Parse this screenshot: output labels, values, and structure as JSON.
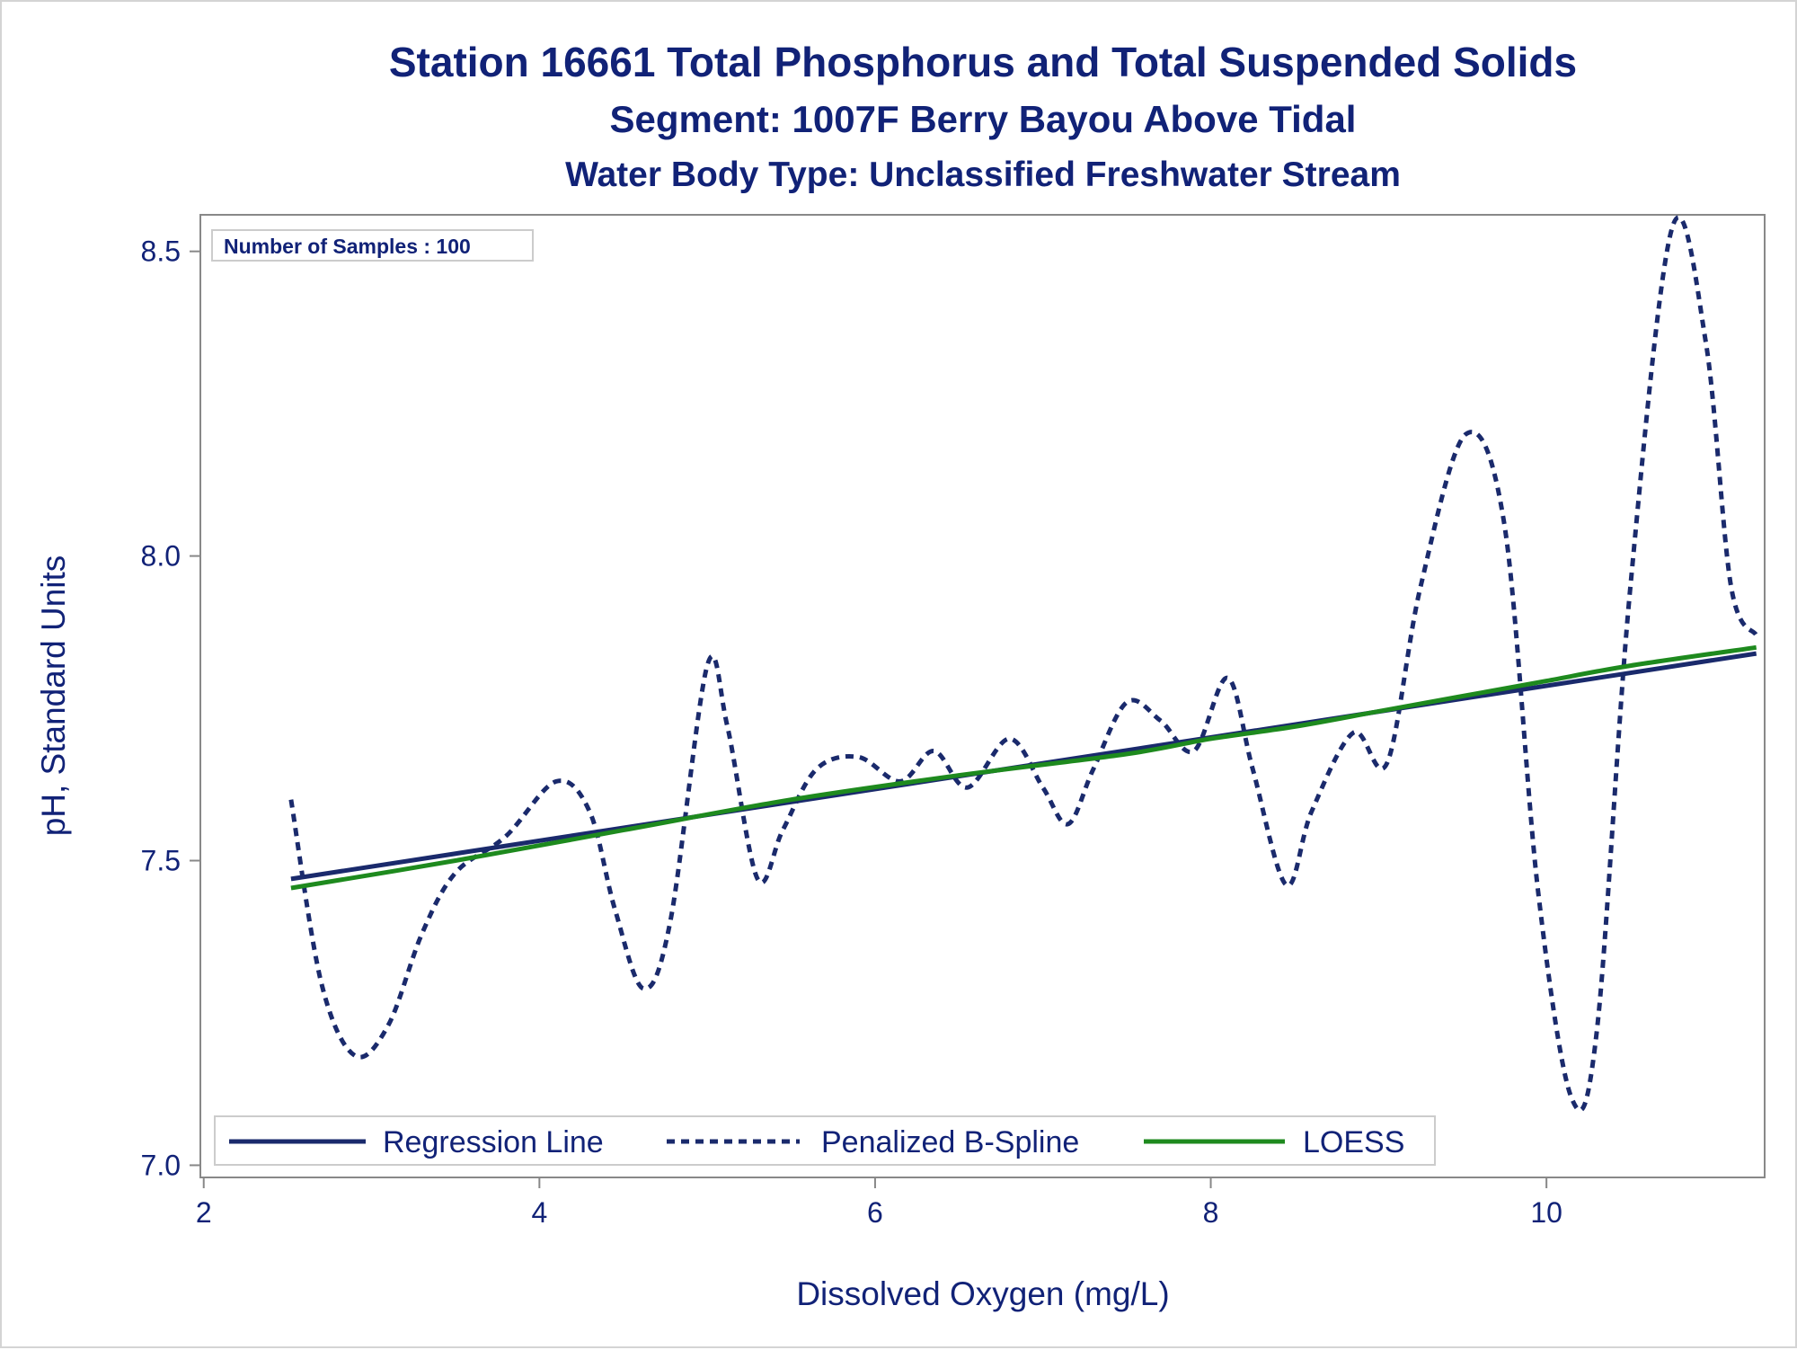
{
  "titles": {
    "line1": "Station 16661  Total Phosphorus and Total Suspended Solids",
    "line2": "Segment: 1007F  Berry Bayou Above Tidal",
    "line3": "Water Body Type: Unclassified Freshwater Stream"
  },
  "inset": {
    "label": "Number of Samples : 100"
  },
  "colors": {
    "text": "#112277",
    "regression": "#1a2a6c",
    "spline": "#1a2a6c",
    "loess": "#1e8a1e",
    "frame": "#888888"
  },
  "chart_data": {
    "type": "line",
    "xlabel": "Dissolved Oxygen (mg/L)",
    "ylabel": "pH, Standard Units",
    "xlim": [
      1.98,
      11.3
    ],
    "ylim": [
      6.98,
      8.56
    ],
    "x_ticks": [
      2,
      4,
      6,
      8,
      10
    ],
    "x_tick_labels": [
      "2",
      "4",
      "6",
      "8",
      "10"
    ],
    "y_ticks": [
      7.0,
      7.5,
      8.0,
      8.5
    ],
    "y_tick_labels": [
      "7.0",
      "7.5",
      "8.0",
      "8.5"
    ],
    "legend_position": "bottom-left",
    "series": [
      {
        "name": "Regression Line",
        "style": "solid",
        "color": "#1a2a6c",
        "points": [
          [
            2.52,
            7.47
          ],
          [
            11.25,
            7.84
          ]
        ]
      },
      {
        "name": "Penalized B-Spline",
        "style": "dashed",
        "color": "#1a2a6c",
        "points": [
          [
            2.52,
            7.6
          ],
          [
            2.7,
            7.3
          ],
          [
            2.9,
            7.18
          ],
          [
            3.1,
            7.23
          ],
          [
            3.3,
            7.38
          ],
          [
            3.5,
            7.48
          ],
          [
            3.8,
            7.54
          ],
          [
            4.1,
            7.63
          ],
          [
            4.3,
            7.58
          ],
          [
            4.45,
            7.42
          ],
          [
            4.62,
            7.29
          ],
          [
            4.78,
            7.4
          ],
          [
            5.0,
            7.82
          ],
          [
            5.12,
            7.72
          ],
          [
            5.3,
            7.47
          ],
          [
            5.45,
            7.55
          ],
          [
            5.65,
            7.65
          ],
          [
            5.9,
            7.67
          ],
          [
            6.15,
            7.63
          ],
          [
            6.35,
            7.68
          ],
          [
            6.55,
            7.62
          ],
          [
            6.8,
            7.7
          ],
          [
            7.0,
            7.62
          ],
          [
            7.15,
            7.56
          ],
          [
            7.3,
            7.65
          ],
          [
            7.5,
            7.76
          ],
          [
            7.7,
            7.73
          ],
          [
            7.9,
            7.68
          ],
          [
            8.1,
            7.8
          ],
          [
            8.25,
            7.65
          ],
          [
            8.45,
            7.46
          ],
          [
            8.6,
            7.58
          ],
          [
            8.85,
            7.71
          ],
          [
            9.05,
            7.66
          ],
          [
            9.25,
            7.95
          ],
          [
            9.52,
            8.2
          ],
          [
            9.75,
            8.05
          ],
          [
            9.95,
            7.45
          ],
          [
            10.15,
            7.11
          ],
          [
            10.3,
            7.22
          ],
          [
            10.5,
            7.95
          ],
          [
            10.75,
            8.54
          ],
          [
            10.95,
            8.35
          ],
          [
            11.1,
            7.95
          ],
          [
            11.25,
            7.87
          ]
        ]
      },
      {
        "name": "LOESS",
        "style": "solid",
        "color": "#1e8a1e",
        "points": [
          [
            2.52,
            7.455
          ],
          [
            3.5,
            7.5
          ],
          [
            4.5,
            7.55
          ],
          [
            5.5,
            7.6
          ],
          [
            6.5,
            7.64
          ],
          [
            7.5,
            7.675
          ],
          [
            8.0,
            7.7
          ],
          [
            8.5,
            7.72
          ],
          [
            9.0,
            7.745
          ],
          [
            9.5,
            7.77
          ],
          [
            10.0,
            7.795
          ],
          [
            10.5,
            7.82
          ],
          [
            11.25,
            7.85
          ]
        ]
      }
    ]
  }
}
